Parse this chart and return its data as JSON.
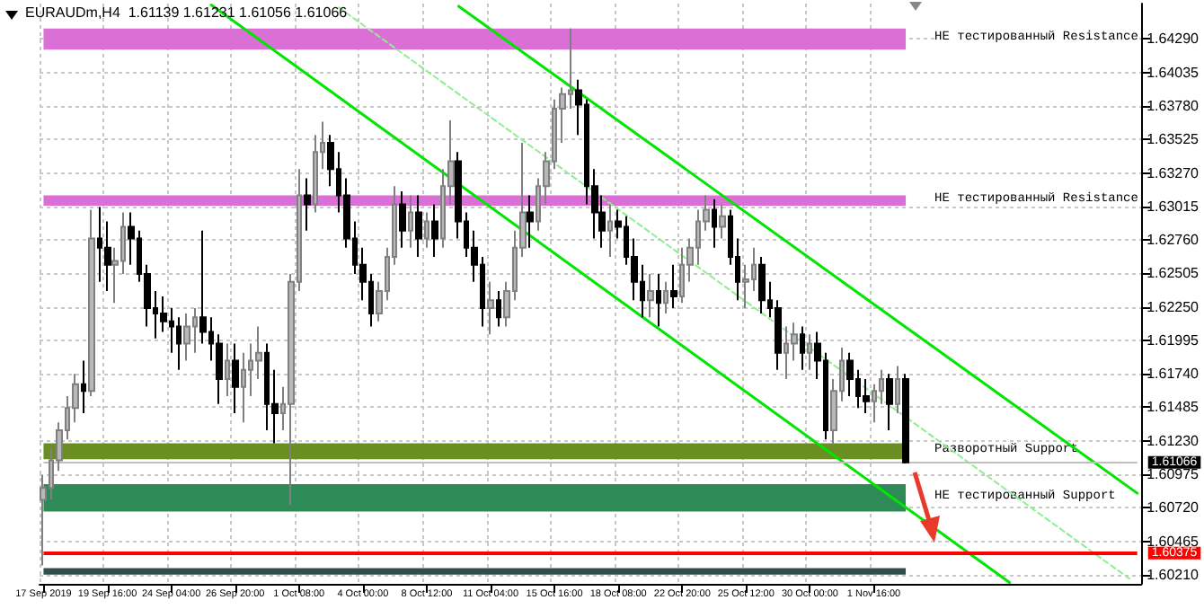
{
  "chart_data": {
    "type": "candlestick",
    "title": "EURAUDm,H4  1.61139 1.61231 1.61056 1.61066",
    "categories": [
      "17 Sep 2019",
      null,
      null,
      null,
      null,
      null,
      null,
      null,
      "19 Sep 16:00",
      null,
      null,
      null,
      null,
      null,
      null,
      null,
      "24 Sep 04:00",
      null,
      null,
      null,
      null,
      null,
      null,
      null,
      "26 Sep 20:00",
      null,
      null,
      null,
      null,
      null,
      null,
      null,
      "1 Oct 08:00",
      null,
      null,
      null,
      null,
      null,
      null,
      null,
      "4 Oct 00:00",
      null,
      null,
      null,
      null,
      null,
      null,
      null,
      "8 Oct 12:00",
      null,
      null,
      null,
      null,
      null,
      null,
      null,
      "11 Oct 04:00",
      null,
      null,
      null,
      null,
      null,
      null,
      null,
      "15 Oct 16:00",
      null,
      null,
      null,
      null,
      null,
      null,
      null,
      "18 Oct 08:00",
      null,
      null,
      null,
      null,
      null,
      null,
      null,
      "22 Oct 20:00",
      null,
      null,
      null,
      null,
      null,
      null,
      null,
      "25 Oct 12:00",
      null,
      null,
      null,
      null,
      null,
      null,
      null,
      "30 Oct 00:00",
      null,
      null,
      null,
      null,
      null,
      null,
      null,
      "1 Nov 16:00",
      null,
      null,
      null,
      null,
      null,
      null,
      null,
      null,
      null,
      null,
      null,
      null,
      null,
      null,
      null,
      null,
      null,
      null,
      null,
      null,
      null,
      null,
      null,
      null,
      null,
      null,
      null,
      null,
      null,
      null,
      null,
      null,
      null
    ],
    "ohlc": [
      [
        1.6078,
        1.6097,
        1.6028,
        1.6087
      ],
      [
        1.6087,
        1.6117,
        1.6078,
        1.6108
      ],
      [
        1.6108,
        1.6137,
        1.61,
        1.6131
      ],
      [
        1.6131,
        1.6157,
        1.6124,
        1.6148
      ],
      [
        1.6148,
        1.6174,
        1.6137,
        1.6166
      ],
      [
        1.6166,
        1.6184,
        1.6144,
        1.6161
      ],
      [
        1.6161,
        1.6299,
        1.6157,
        1.6277
      ],
      [
        1.6277,
        1.6301,
        1.6244,
        1.627
      ],
      [
        1.627,
        1.629,
        1.6237,
        1.6257
      ],
      [
        1.6257,
        1.627,
        1.6228,
        1.626
      ],
      [
        1.626,
        1.6297,
        1.625,
        1.6286
      ],
      [
        1.6286,
        1.6297,
        1.6257,
        1.6277
      ],
      [
        1.6277,
        1.6283,
        1.6244,
        1.625
      ],
      [
        1.625,
        1.6257,
        1.621,
        1.6224
      ],
      [
        1.6224,
        1.6237,
        1.6201,
        1.622
      ],
      [
        1.622,
        1.6233,
        1.6206,
        1.6214
      ],
      [
        1.6214,
        1.6224,
        1.619,
        1.621
      ],
      [
        1.621,
        1.6217,
        1.6177,
        1.6197
      ],
      [
        1.6197,
        1.622,
        1.6184,
        1.621
      ],
      [
        1.621,
        1.6224,
        1.619,
        1.6217
      ],
      [
        1.6217,
        1.6283,
        1.6197,
        1.6206
      ],
      [
        1.6206,
        1.6217,
        1.6184,
        1.6197
      ],
      [
        1.6197,
        1.6204,
        1.6151,
        1.617
      ],
      [
        1.617,
        1.6197,
        1.6157,
        1.6184
      ],
      [
        1.6184,
        1.6197,
        1.6144,
        1.6164
      ],
      [
        1.6164,
        1.619,
        1.6137,
        1.6177
      ],
      [
        1.6177,
        1.6197,
        1.6157,
        1.6184
      ],
      [
        1.6184,
        1.621,
        1.617,
        1.619
      ],
      [
        1.619,
        1.6197,
        1.6131,
        1.6151
      ],
      [
        1.6151,
        1.6177,
        1.6121,
        1.6144
      ],
      [
        1.6144,
        1.6164,
        1.6131,
        1.6151
      ],
      [
        1.6151,
        1.625,
        1.6074,
        1.6244
      ],
      [
        1.6244,
        1.633,
        1.6237,
        1.631
      ],
      [
        1.631,
        1.6323,
        1.6283,
        1.6303
      ],
      [
        1.6303,
        1.6356,
        1.6297,
        1.6343
      ],
      [
        1.6343,
        1.6366,
        1.633,
        1.635
      ],
      [
        1.635,
        1.6356,
        1.6317,
        1.633
      ],
      [
        1.633,
        1.6343,
        1.6297,
        1.631
      ],
      [
        1.631,
        1.6323,
        1.627,
        1.6277
      ],
      [
        1.6277,
        1.629,
        1.625,
        1.6257
      ],
      [
        1.6257,
        1.627,
        1.623,
        1.6244
      ],
      [
        1.6244,
        1.625,
        1.621,
        1.622
      ],
      [
        1.622,
        1.6244,
        1.6214,
        1.6237
      ],
      [
        1.6237,
        1.627,
        1.623,
        1.6263
      ],
      [
        1.6263,
        1.6317,
        1.6257,
        1.6303
      ],
      [
        1.6303,
        1.6313,
        1.627,
        1.6283
      ],
      [
        1.6283,
        1.631,
        1.627,
        1.6297
      ],
      [
        1.6297,
        1.631,
        1.6263,
        1.6277
      ],
      [
        1.6277,
        1.6297,
        1.627,
        1.629
      ],
      [
        1.629,
        1.6303,
        1.6263,
        1.6277
      ],
      [
        1.6277,
        1.633,
        1.627,
        1.6317
      ],
      [
        1.6317,
        1.6367,
        1.6303,
        1.6336
      ],
      [
        1.6336,
        1.6343,
        1.6277,
        1.629
      ],
      [
        1.629,
        1.6297,
        1.6263,
        1.627
      ],
      [
        1.627,
        1.6283,
        1.6244,
        1.6257
      ],
      [
        1.6257,
        1.6263,
        1.621,
        1.6224
      ],
      [
        1.6224,
        1.6244,
        1.6204,
        1.623
      ],
      [
        1.623,
        1.6237,
        1.621,
        1.6217
      ],
      [
        1.6217,
        1.6244,
        1.621,
        1.6237
      ],
      [
        1.6237,
        1.6283,
        1.623,
        1.627
      ],
      [
        1.627,
        1.635,
        1.6263,
        1.6297
      ],
      [
        1.6297,
        1.631,
        1.627,
        1.629
      ],
      [
        1.629,
        1.6323,
        1.6283,
        1.6317
      ],
      [
        1.6317,
        1.6343,
        1.6303,
        1.6336
      ],
      [
        1.6336,
        1.6383,
        1.633,
        1.6376
      ],
      [
        1.6376,
        1.6392,
        1.635,
        1.6387
      ],
      [
        1.6387,
        1.6437,
        1.6376,
        1.639
      ],
      [
        1.639,
        1.6398,
        1.6356,
        1.6379
      ],
      [
        1.6379,
        1.6383,
        1.6303,
        1.6317
      ],
      [
        1.6317,
        1.633,
        1.6277,
        1.6297
      ],
      [
        1.6297,
        1.631,
        1.627,
        1.6283
      ],
      [
        1.6283,
        1.6303,
        1.6263,
        1.629
      ],
      [
        1.629,
        1.6299,
        1.6277,
        1.6286
      ],
      [
        1.6286,
        1.6294,
        1.6257,
        1.6263
      ],
      [
        1.6263,
        1.6277,
        1.623,
        1.6244
      ],
      [
        1.6244,
        1.6257,
        1.6217,
        1.623
      ],
      [
        1.623,
        1.625,
        1.6217,
        1.6237
      ],
      [
        1.6237,
        1.625,
        1.621,
        1.6228
      ],
      [
        1.6228,
        1.6244,
        1.622,
        1.6237
      ],
      [
        1.6237,
        1.6257,
        1.6224,
        1.6233
      ],
      [
        1.6233,
        1.627,
        1.6228,
        1.6257
      ],
      [
        1.6257,
        1.6277,
        1.6244,
        1.627
      ],
      [
        1.627,
        1.6299,
        1.6257,
        1.629
      ],
      [
        1.629,
        1.631,
        1.6283,
        1.6299
      ],
      [
        1.6299,
        1.6307,
        1.627,
        1.6286
      ],
      [
        1.6286,
        1.6303,
        1.6277,
        1.6294
      ],
      [
        1.6294,
        1.6299,
        1.6257,
        1.6263
      ],
      [
        1.6263,
        1.6277,
        1.623,
        1.6244
      ],
      [
        1.6244,
        1.6257,
        1.6224,
        1.6246
      ],
      [
        1.6246,
        1.627,
        1.6237,
        1.6257
      ],
      [
        1.6257,
        1.6263,
        1.622,
        1.623
      ],
      [
        1.623,
        1.6244,
        1.6217,
        1.6224
      ],
      [
        1.6224,
        1.623,
        1.6177,
        1.619
      ],
      [
        1.619,
        1.621,
        1.617,
        1.6197
      ],
      [
        1.6197,
        1.6213,
        1.6184,
        1.6204
      ],
      [
        1.6204,
        1.621,
        1.6177,
        1.619
      ],
      [
        1.619,
        1.6204,
        1.6177,
        1.6197
      ],
      [
        1.6197,
        1.6206,
        1.617,
        1.6184
      ],
      [
        1.6184,
        1.619,
        1.6124,
        1.6131
      ],
      [
        1.6131,
        1.617,
        1.612,
        1.6161
      ],
      [
        1.6161,
        1.6194,
        1.6153,
        1.6184
      ],
      [
        1.6184,
        1.619,
        1.6157,
        1.617
      ],
      [
        1.617,
        1.6177,
        1.6148,
        1.6157
      ],
      [
        1.6157,
        1.617,
        1.6144,
        1.6153
      ],
      [
        1.6153,
        1.6166,
        1.6137,
        1.6161
      ],
      [
        1.6161,
        1.6177,
        1.6151,
        1.617
      ],
      [
        1.617,
        1.6174,
        1.6131,
        1.6151
      ],
      [
        1.6151,
        1.618,
        1.6144,
        1.617
      ],
      [
        1.617,
        1.6174,
        1.61056,
        1.61066
      ],
      null,
      null,
      null,
      null,
      null,
      null,
      null,
      null,
      null,
      null,
      null,
      null,
      null,
      null,
      null,
      null,
      null,
      null,
      null,
      null,
      null,
      null,
      null,
      null,
      null,
      null,
      null,
      null,
      null
    ],
    "series": [
      {
        "type": "line",
        "color": "#00e600",
        "line_style": "solid",
        "values": [
          null,
          null,
          null,
          null,
          null,
          null,
          null,
          null,
          null,
          null,
          null,
          null,
          null,
          null,
          null,
          null,
          null,
          null,
          null,
          null,
          null,
          null,
          null,
          null,
          null,
          null,
          null,
          null,
          null,
          null,
          null,
          null,
          null,
          null,
          null,
          null,
          null,
          null,
          null,
          null,
          null,
          null,
          null,
          null,
          null,
          null,
          null,
          null,
          null,
          null,
          null,
          null,
          1.6454,
          null,
          null,
          null,
          null,
          null,
          null,
          null,
          null,
          null,
          null,
          null,
          null,
          null,
          null,
          null,
          null,
          null,
          null,
          null,
          null,
          null,
          null,
          null,
          null,
          null,
          null,
          null,
          null,
          null,
          null,
          null,
          null,
          null,
          null,
          null,
          null,
          null,
          null,
          null,
          null,
          null,
          null,
          null,
          null,
          null,
          null,
          null,
          null,
          null,
          null,
          null,
          null,
          null,
          null,
          null,
          null,
          null,
          null,
          null,
          null,
          null,
          null,
          null,
          null,
          null,
          null,
          null,
          null,
          null,
          null,
          null,
          null,
          null,
          null,
          null,
          null,
          null,
          null,
          null,
          null,
          null,
          null,
          null,
          null,
          1.6083
        ]
      },
      {
        "type": "line",
        "color": "#00e600",
        "line_style": "solid",
        "values": [
          null,
          null,
          null,
          null,
          null,
          null,
          null,
          null,
          null,
          null,
          null,
          null,
          null,
          null,
          null,
          null,
          null,
          null,
          null,
          null,
          null,
          1.6455,
          null,
          null,
          null,
          null,
          null,
          null,
          null,
          null,
          null,
          null,
          null,
          null,
          null,
          null,
          null,
          null,
          null,
          null,
          null,
          null,
          null,
          null,
          null,
          null,
          null,
          null,
          null,
          null,
          null,
          null,
          null,
          null,
          null,
          null,
          null,
          null,
          null,
          null,
          null,
          null,
          null,
          null,
          null,
          null,
          null,
          null,
          null,
          null,
          null,
          null,
          null,
          null,
          null,
          null,
          null,
          null,
          null,
          null,
          null,
          null,
          null,
          null,
          null,
          null,
          null,
          null,
          null,
          null,
          null,
          null,
          null,
          null,
          null,
          null,
          null,
          null,
          null,
          null,
          null,
          null,
          null,
          null,
          null,
          null,
          null,
          null,
          null,
          null,
          null,
          null,
          null,
          null,
          null,
          null,
          null,
          null,
          null,
          null,
          null,
          1.6015,
          null,
          null,
          null,
          null,
          null,
          null,
          null,
          null,
          null,
          null,
          null,
          null,
          null,
          null,
          null,
          null
        ]
      },
      {
        "type": "line",
        "color": "#90ee90",
        "line_style": "dashed",
        "values": [
          null,
          null,
          null,
          null,
          null,
          null,
          null,
          null,
          null,
          null,
          null,
          null,
          null,
          null,
          null,
          null,
          null,
          null,
          null,
          null,
          null,
          null,
          null,
          null,
          null,
          null,
          null,
          null,
          null,
          null,
          null,
          null,
          null,
          null,
          null,
          null,
          null,
          1.6453,
          null,
          null,
          null,
          null,
          null,
          null,
          null,
          null,
          null,
          null,
          null,
          null,
          null,
          null,
          null,
          null,
          null,
          null,
          null,
          null,
          null,
          null,
          null,
          null,
          null,
          null,
          null,
          null,
          null,
          null,
          null,
          null,
          null,
          null,
          null,
          null,
          null,
          null,
          null,
          null,
          null,
          null,
          null,
          null,
          null,
          null,
          null,
          null,
          null,
          null,
          null,
          null,
          null,
          null,
          null,
          null,
          null,
          null,
          null,
          null,
          null,
          null,
          null,
          null,
          null,
          null,
          null,
          null,
          null,
          null,
          null,
          null,
          null,
          null,
          null,
          null,
          null,
          null,
          null,
          null,
          null,
          null,
          null,
          null,
          null,
          null,
          null,
          null,
          null,
          null,
          null,
          null,
          null,
          null,
          null,
          null,
          null,
          null,
          1.6018,
          null
        ]
      }
    ],
    "bands": [
      {
        "axis": "y",
        "from": 1.6421,
        "to": 1.6437,
        "color": "#da70d6",
        "label": "НЕ тестированный Resistance"
      },
      {
        "axis": "y",
        "from": 1.6302,
        "to": 1.631,
        "color": "#da70d6",
        "label": "НЕ тестированный Resistance"
      },
      {
        "axis": "y",
        "from": 1.6109,
        "to": 1.6121,
        "color": "#6b8e23",
        "label": "Разворотный Support"
      },
      {
        "axis": "y",
        "from": 1.6069,
        "to": 1.609,
        "color": "#2e8b57",
        "label": "НЕ тестированный Support"
      },
      {
        "axis": "y",
        "from": 1.6021,
        "to": 1.6026,
        "color": "#2f4f4f"
      }
    ],
    "ref_lines": [
      {
        "axis": "y",
        "value": 1.60375,
        "label": "1.60375",
        "color": "#ff0000",
        "line_style": "solid"
      },
      {
        "axis": "y",
        "value": 1.61066,
        "label": "1.61066",
        "color": "#c0c0c0",
        "line_style": "solid"
      }
    ],
    "ylim": [
      1.6014,
      1.6456
    ],
    "yticks": [
      {
        "value": 1.6021,
        "label": "1.60210"
      },
      {
        "value": 1.60465,
        "label": "1.60465"
      },
      {
        "value": 1.6072,
        "label": "1.60720"
      },
      {
        "value": 1.60975,
        "label": "1.60975"
      },
      {
        "value": 1.6123,
        "label": "1.61230"
      },
      {
        "value": 1.61485,
        "label": "1.61485"
      },
      {
        "value": 1.6174,
        "label": "1.61740"
      },
      {
        "value": 1.61995,
        "label": "1.61995"
      },
      {
        "value": 1.6225,
        "label": "1.62250"
      },
      {
        "value": 1.62505,
        "label": "1.62505"
      },
      {
        "value": 1.6276,
        "label": "1.62760"
      },
      {
        "value": 1.63015,
        "label": "1.63015"
      },
      {
        "value": 1.6327,
        "label": "1.63270"
      },
      {
        "value": 1.63525,
        "label": "1.63525"
      },
      {
        "value": 1.6378,
        "label": "1.63780"
      },
      {
        "value": 1.64035,
        "label": "1.64035"
      },
      {
        "value": 1.6429,
        "label": "1.64290"
      }
    ],
    "grid": true
  }
}
